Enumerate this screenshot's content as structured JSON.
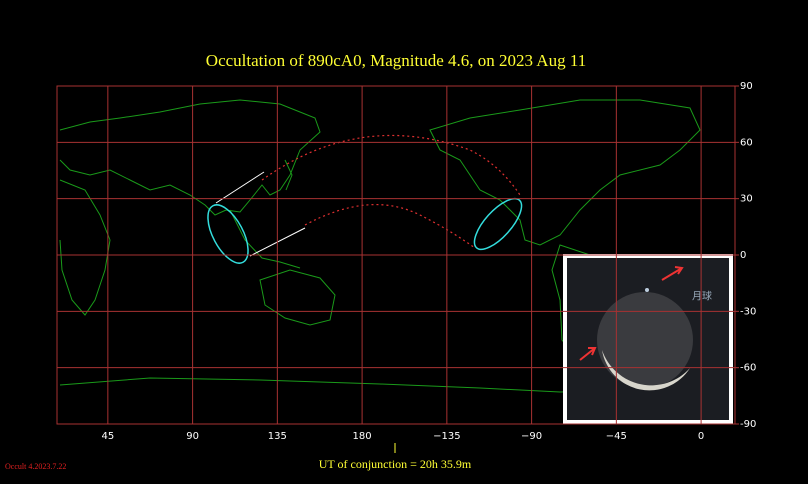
{
  "chart_data": {
    "type": "map",
    "title": "Occultation  of  890cA0,      Magnitude 4.6,   on  2023 Aug 11",
    "xlim": [
      18,
      378
    ],
    "ylim": [
      -90,
      90
    ],
    "xticks": [
      45,
      90,
      135,
      180,
      {
        "value": 225,
        "label": "−135"
      },
      {
        "value": 270,
        "label": "−90"
      },
      {
        "value": 315,
        "label": "−45"
      },
      {
        "value": 360,
        "label": "0"
      }
    ],
    "yticks": [
      90,
      60,
      30,
      0,
      -30,
      -60,
      -90
    ],
    "grid": true,
    "grid_color": "#a83232",
    "annotation": "UT of conjunction = 20h 35.9m",
    "version": "Occult 4.2023.7.22",
    "inset_label": "月球"
  }
}
